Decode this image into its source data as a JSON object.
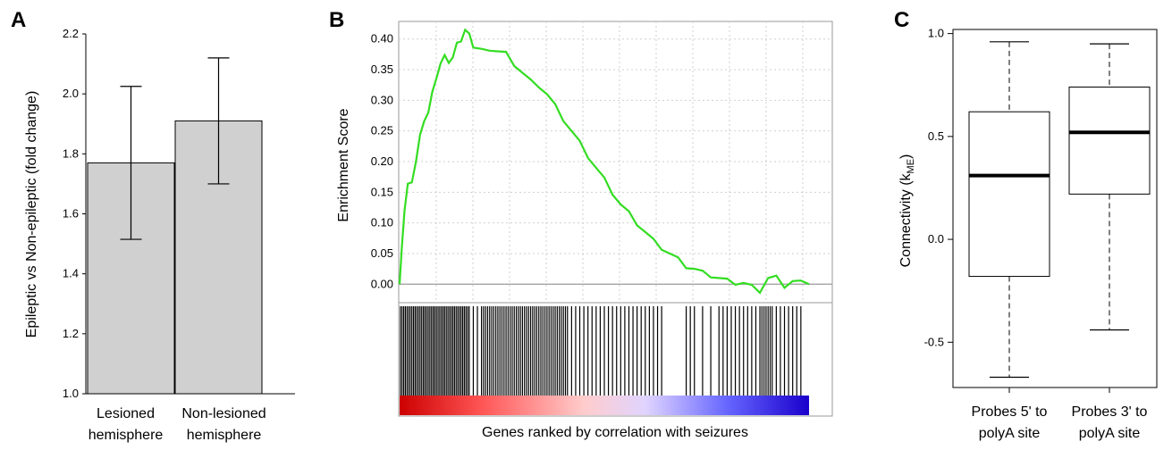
{
  "chart_data": [
    {
      "panel_letter": "A",
      "type": "bar",
      "categories": [
        [
          "Lesioned",
          "hemisphere"
        ],
        [
          "Non-lesioned",
          "hemisphere"
        ]
      ],
      "values": [
        1.77,
        1.91
      ],
      "error_low": [
        1.515,
        1.7
      ],
      "error_high": [
        2.025,
        2.12
      ],
      "ylabel": "Epileptic vs Non-epileptic (fold change)",
      "ylim": [
        1.0,
        2.2
      ],
      "yticks": [
        "1.0",
        "1.2",
        "1.4",
        "1.6",
        "1.8",
        "2.0",
        "2.2"
      ],
      "bar_color": "#d0d0d0",
      "grid": false
    },
    {
      "panel_letter": "B",
      "type": "line",
      "ylabel": "Enrichment Score",
      "xlabel": "Genes ranked by correlation with seizures",
      "ylim": [
        -0.02,
        0.42
      ],
      "yticks": [
        "0.00",
        "0.05",
        "0.10",
        "0.15",
        "0.20",
        "0.25",
        "0.30",
        "0.35",
        "0.40"
      ],
      "grid": true,
      "line_color": "#33dd22",
      "series": [
        {
          "x": [
            0,
            0.005,
            0.012,
            0.02,
            0.03,
            0.04,
            0.05,
            0.06,
            0.07,
            0.08,
            0.09,
            0.1,
            0.11,
            0.12,
            0.13,
            0.14,
            0.15,
            0.16,
            0.17,
            0.18,
            0.19,
            0.2,
            0.22,
            0.24,
            0.26,
            0.28,
            0.3,
            0.32,
            0.34,
            0.36,
            0.38,
            0.4,
            0.42,
            0.44,
            0.46,
            0.48,
            0.5,
            0.52,
            0.54,
            0.56,
            0.58,
            0.6,
            0.62,
            0.64,
            0.66,
            0.68,
            0.7,
            0.72,
            0.74,
            0.76,
            0.78,
            0.8,
            0.82,
            0.84,
            0.86,
            0.88,
            0.9,
            0.92,
            0.94,
            0.96,
            0.98,
            1.0
          ],
          "y": [
            0.0,
            0.06,
            0.12,
            0.16,
            0.17,
            0.2,
            0.24,
            0.27,
            0.28,
            0.31,
            0.34,
            0.36,
            0.37,
            0.365,
            0.37,
            0.39,
            0.4,
            0.415,
            0.405,
            0.39,
            0.385,
            0.38,
            0.385,
            0.38,
            0.375,
            0.36,
            0.345,
            0.33,
            0.325,
            0.31,
            0.29,
            0.27,
            0.25,
            0.23,
            0.21,
            0.19,
            0.17,
            0.15,
            0.13,
            0.115,
            0.1,
            0.085,
            0.07,
            0.06,
            0.05,
            0.04,
            0.03,
            0.025,
            0.018,
            0.015,
            0.01,
            0.005,
            0.003,
            0.002,
            -0.005,
            -0.01,
            0.01,
            0.01,
            -0.002,
            0.005,
            0.002,
            0.0
          ]
        }
      ],
      "hit_positions": [
        0.002,
        0.006,
        0.01,
        0.014,
        0.018,
        0.022,
        0.026,
        0.03,
        0.034,
        0.038,
        0.042,
        0.046,
        0.05,
        0.054,
        0.058,
        0.062,
        0.066,
        0.07,
        0.074,
        0.078,
        0.082,
        0.086,
        0.09,
        0.094,
        0.098,
        0.102,
        0.106,
        0.11,
        0.114,
        0.118,
        0.122,
        0.126,
        0.13,
        0.134,
        0.138,
        0.142,
        0.146,
        0.15,
        0.154,
        0.158,
        0.162,
        0.166,
        0.17,
        0.18,
        0.19,
        0.2,
        0.205,
        0.21,
        0.215,
        0.22,
        0.225,
        0.23,
        0.235,
        0.24,
        0.245,
        0.25,
        0.255,
        0.26,
        0.265,
        0.27,
        0.275,
        0.28,
        0.285,
        0.29,
        0.295,
        0.3,
        0.305,
        0.31,
        0.315,
        0.32,
        0.325,
        0.33,
        0.335,
        0.34,
        0.345,
        0.35,
        0.355,
        0.36,
        0.365,
        0.37,
        0.375,
        0.38,
        0.385,
        0.39,
        0.395,
        0.4,
        0.405,
        0.41,
        0.42,
        0.43,
        0.44,
        0.45,
        0.46,
        0.47,
        0.48,
        0.49,
        0.5,
        0.51,
        0.52,
        0.53,
        0.54,
        0.55,
        0.56,
        0.57,
        0.58,
        0.59,
        0.6,
        0.61,
        0.62,
        0.63,
        0.64,
        0.7,
        0.71,
        0.72,
        0.74,
        0.76,
        0.78,
        0.79,
        0.8,
        0.81,
        0.82,
        0.83,
        0.84,
        0.85,
        0.86,
        0.87,
        0.88,
        0.885,
        0.89,
        0.895,
        0.9,
        0.905,
        0.91,
        0.92,
        0.93,
        0.94,
        0.95,
        0.96,
        0.97,
        0.98
      ]
    },
    {
      "panel_letter": "C",
      "type": "box",
      "categories": [
        [
          "Probes 5' to",
          "polyA site"
        ],
        [
          "Probes 3' to",
          "polyA site"
        ]
      ],
      "boxes": [
        {
          "whisker_low": -0.67,
          "q1": -0.18,
          "median": 0.31,
          "q3": 0.62,
          "whisker_high": 0.96
        },
        {
          "whisker_low": -0.44,
          "q1": 0.22,
          "median": 0.52,
          "q3": 0.74,
          "whisker_high": 0.95
        }
      ],
      "ylabel_main": "Connectivity (k",
      "ylabel_sub": "ME",
      "ylabel_end": ")",
      "ylim": [
        -0.72,
        1.02
      ],
      "yticks": [
        "-0.5",
        "0.0",
        "0.5",
        "1.0"
      ],
      "grid": false
    }
  ]
}
